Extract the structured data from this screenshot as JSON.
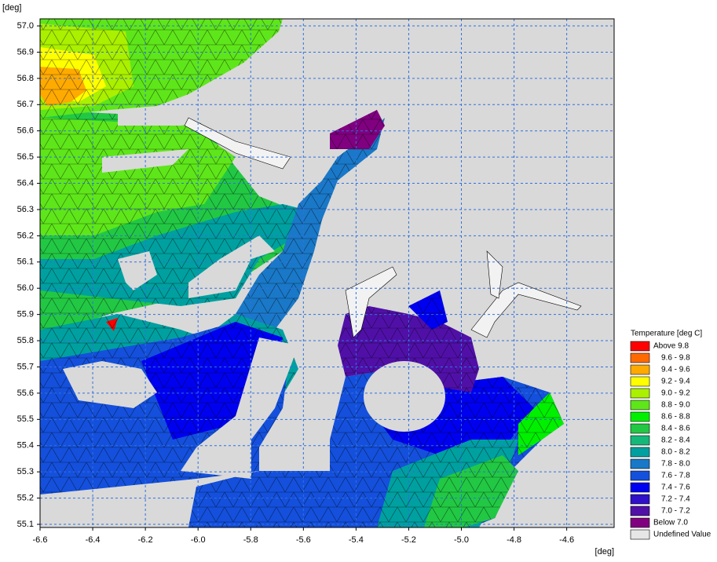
{
  "chart_data": {
    "type": "contour",
    "ylabel": "[deg]",
    "xlabel": "[deg]",
    "xlim": [
      -6.6,
      -4.42
    ],
    "ylim": [
      55.088,
      57.027
    ],
    "xticks": [
      -6.6,
      -6.4,
      -6.2,
      {
        "value": -6,
        "label": "-6.0"
      },
      -5.8,
      -5.6,
      -5.4,
      -5.2,
      {
        "value": -5,
        "label": "-5.0"
      },
      -4.8,
      -4.6
    ],
    "yticks": [
      {
        "value": 55.1,
        "label": "55.1"
      },
      {
        "value": 55.2,
        "label": "55.2"
      },
      {
        "value": 55.3,
        "label": "55.3"
      },
      {
        "value": 55.4,
        "label": "55.4"
      },
      {
        "value": 55.5,
        "label": "55.5"
      },
      {
        "value": 55.6,
        "label": "55.6"
      },
      {
        "value": 55.7,
        "label": "55.7"
      },
      {
        "value": 55.8,
        "label": "55.8"
      },
      {
        "value": 55.9,
        "label": "55.9"
      },
      {
        "value": 56,
        "label": "56.0"
      },
      {
        "value": 56.1,
        "label": "56.1"
      },
      {
        "value": 56.2,
        "label": "56.2"
      },
      {
        "value": 56.3,
        "label": "56.3"
      },
      {
        "value": 56.4,
        "label": "56.4"
      },
      {
        "value": 56.5,
        "label": "56.5"
      },
      {
        "value": 56.6,
        "label": "56.6"
      },
      {
        "value": 56.7,
        "label": "56.7"
      },
      {
        "value": 56.8,
        "label": "56.8"
      },
      {
        "value": 56.9,
        "label": "56.9"
      },
      {
        "value": 57,
        "label": "57.0"
      }
    ],
    "grid": true,
    "legend": {
      "title": "Temperature [deg C]",
      "items": [
        {
          "label": "Above 9.8",
          "color": "#ff0000"
        },
        {
          "label": "9.6 - 9.8",
          "color": "#ff6a00"
        },
        {
          "label": "9.4 - 9.6",
          "color": "#ffaa00"
        },
        {
          "label": "9.2 - 9.4",
          "color": "#ffff00"
        },
        {
          "label": "9.0 - 9.2",
          "color": "#aaf000"
        },
        {
          "label": "8.8 - 9.0",
          "color": "#5ee61a"
        },
        {
          "label": "8.6 - 8.8",
          "color": "#00f000"
        },
        {
          "label": "8.4 - 8.6",
          "color": "#22c844"
        },
        {
          "label": "8.2 - 8.4",
          "color": "#14b878"
        },
        {
          "label": "8.0 - 8.2",
          "color": "#00a0a0"
        },
        {
          "label": "7.8 - 8.0",
          "color": "#1a78c8"
        },
        {
          "label": "7.6 - 7.8",
          "color": "#1450dc"
        },
        {
          "label": "7.4 - 7.6",
          "color": "#0000f0"
        },
        {
          "label": "7.2 - 7.4",
          "color": "#3010c8"
        },
        {
          "label": "7.0 - 7.2",
          "color": "#5010a8"
        },
        {
          "label": "Below 7.0",
          "color": "#800080"
        },
        {
          "label": "Undefined Value",
          "color": "#e6e6e6"
        }
      ]
    }
  }
}
